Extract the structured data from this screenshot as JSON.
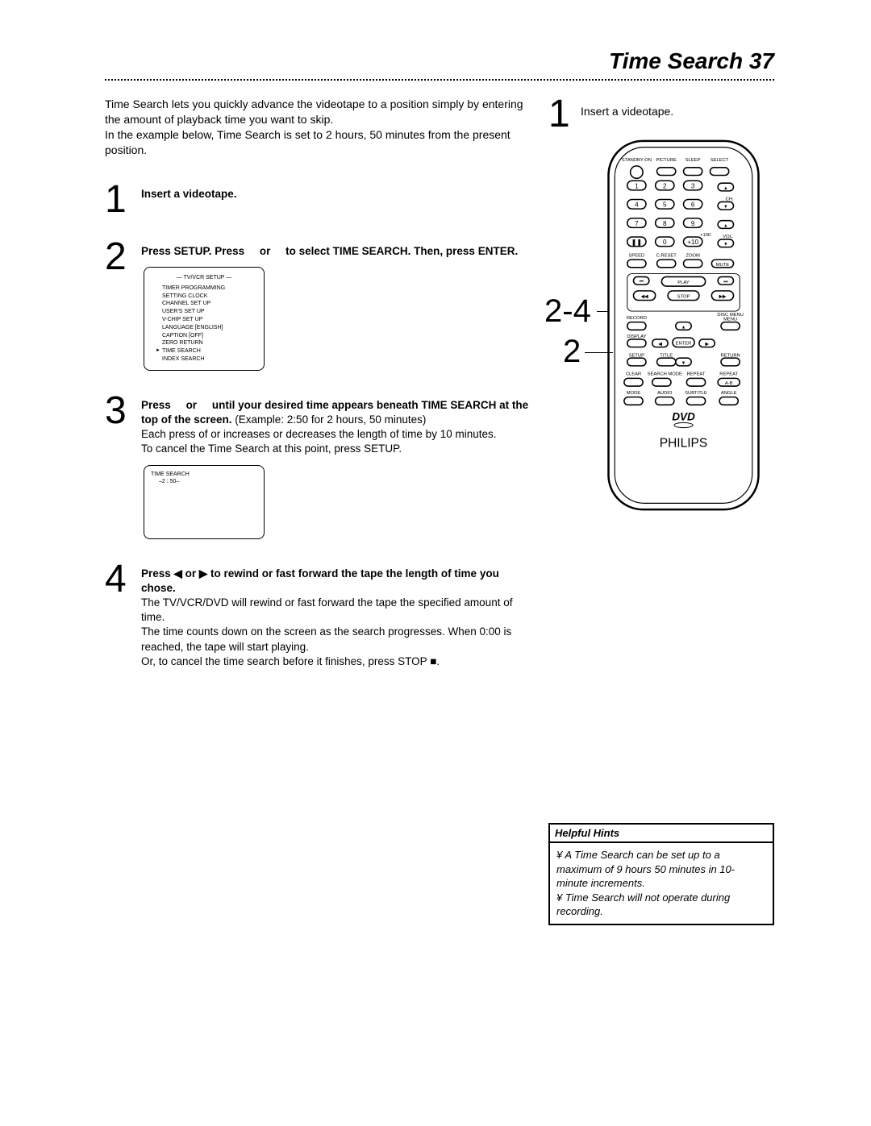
{
  "header": {
    "title": "Time Search",
    "page_number": "37"
  },
  "intro": {
    "p1": "Time Search lets you quickly advance the videotape to a position simply by entering the amount of playback time you want to skip.",
    "p2": "In the example below, Time Search is set to 2 hours, 50 minutes from the present position."
  },
  "steps": [
    {
      "num": "1",
      "bold": "Insert a videotape."
    },
    {
      "num": "2",
      "bold_pre": "Press SETUP. Press ",
      "bold_mid": " or ",
      "bold_post": " to select TIME SEARCH. Then, press ENTER.",
      "menu": {
        "title": "— TV/VCR SETUP —",
        "items": [
          "TIMER PROGRAMMING",
          "SETTING CLOCK",
          "CHANNEL SET UP",
          "USER'S SET UP",
          "V-CHIP SET UP",
          "LANGUAGE   [ENGLISH]",
          "CAPTION   [OFF]",
          "ZERO RETURN",
          "TIME SEARCH",
          "INDEX SEARCH"
        ],
        "selected_index": 8
      }
    },
    {
      "num": "3",
      "bold_pre": "Press ",
      "bold_mid": " or ",
      "bold_post": " until your desired time appears beneath TIME SEARCH at the top of the screen.",
      "plain1": " (Example: 2:50 for 2 hours, 50 minutes)",
      "plain2": "Each press of     or     increases or decreases the length of time by 10 minutes.",
      "plain3": "To cancel the Time Search at this point, press SETUP.",
      "timebox": {
        "line1": "TIME SEARCH",
        "line2": "–2 : 50–"
      }
    },
    {
      "num": "4",
      "bold": "Press ◀ or ▶ to rewind or fast forward the tape the length of time you chose.",
      "plain1": "The TV/VCR/DVD will rewind or fast forward the tape the specified amount of time.",
      "plain2": "The time counts down on the screen as the search progresses. When 0:00 is reached, the tape will start playing.",
      "plain3": "Or, to cancel the time search before it finishes, press STOP ■."
    }
  ],
  "right": {
    "step_num": "1",
    "step_text": "Insert a videotape.",
    "side_num_a": "2-4",
    "side_num_b": "2",
    "brand": "PHILIPS"
  },
  "remote": {
    "top_row": [
      "STANDBY-ON",
      "PICTURE",
      "SLEEP",
      "SELECT"
    ],
    "row2": [
      "1",
      "2",
      "3"
    ],
    "row3": [
      "4",
      "5",
      "6"
    ],
    "row4": [
      "7",
      "8",
      "9"
    ],
    "row5_left": "❚❚",
    "row5_mid": "0",
    "row5_right": "+10",
    "ch_label": "CH.",
    "plus100": "+100",
    "vol_label": "VOL.",
    "row6": [
      "SPEED",
      "C.RESET",
      "ZOOM",
      "MUTE"
    ],
    "transport": {
      "play": "PLAY",
      "stop": "STOP"
    },
    "labels_rd": [
      "RECORD",
      "DISC MENU"
    ],
    "labels_ds": [
      "DISPLAY"
    ],
    "enter": "ENTER",
    "labels_str": [
      "SETUP",
      "TITLE",
      "",
      "RETURN"
    ],
    "labels_csr": [
      "CLEAR",
      "SEARCH MODE",
      "REPEAT",
      "REPEAT",
      "A-B"
    ],
    "labels_last": [
      "MODE",
      "AUDIO",
      "SUBTITLE",
      "ANGLE"
    ],
    "dvd": "DVD",
    "colors": {
      "body": "#ffffff",
      "outline": "#000000",
      "button_fill": "#ffffff",
      "button_stroke": "#000000",
      "text": "#000000"
    }
  },
  "hints": {
    "title": "Helpful Hints",
    "items": [
      "A Time Search can be set up to a maximum of 9 hours 50 minutes in 10-minute increments.",
      "Time Search will not operate during recording."
    ]
  },
  "typography": {
    "header_fontsize": 28,
    "body_fontsize": 14,
    "stepnum_fontsize": 48
  }
}
